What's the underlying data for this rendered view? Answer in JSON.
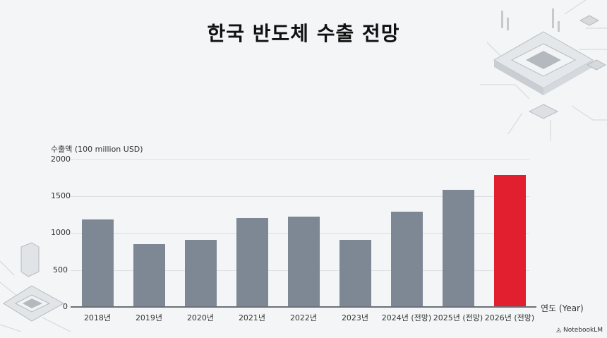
{
  "title": "한국 반도체 수출 전망",
  "brand": "NotebookLM",
  "colors": {
    "bar": "#7e8895",
    "highlight": "#e21f2e",
    "background": "#f3f5f6"
  },
  "chart_data": {
    "type": "bar",
    "title": "한국 반도체 수출 전망",
    "xlabel": "연도 (Year)",
    "ylabel": "수출액 (100 million USD)",
    "ylim": [
      0,
      2000
    ],
    "yticks": [
      "0",
      "500",
      "1000",
      "1500",
      "2000"
    ],
    "grid": true,
    "categories": [
      "2018년",
      "2019년",
      "2020년",
      "2021년",
      "2022년",
      "2023년",
      "2024년 (전망)",
      "2025년 (전망)",
      "2026년 (전망)"
    ],
    "values": [
      1190,
      860,
      910,
      1210,
      1230,
      910,
      1300,
      1600,
      1800
    ],
    "highlight_index": 8
  }
}
